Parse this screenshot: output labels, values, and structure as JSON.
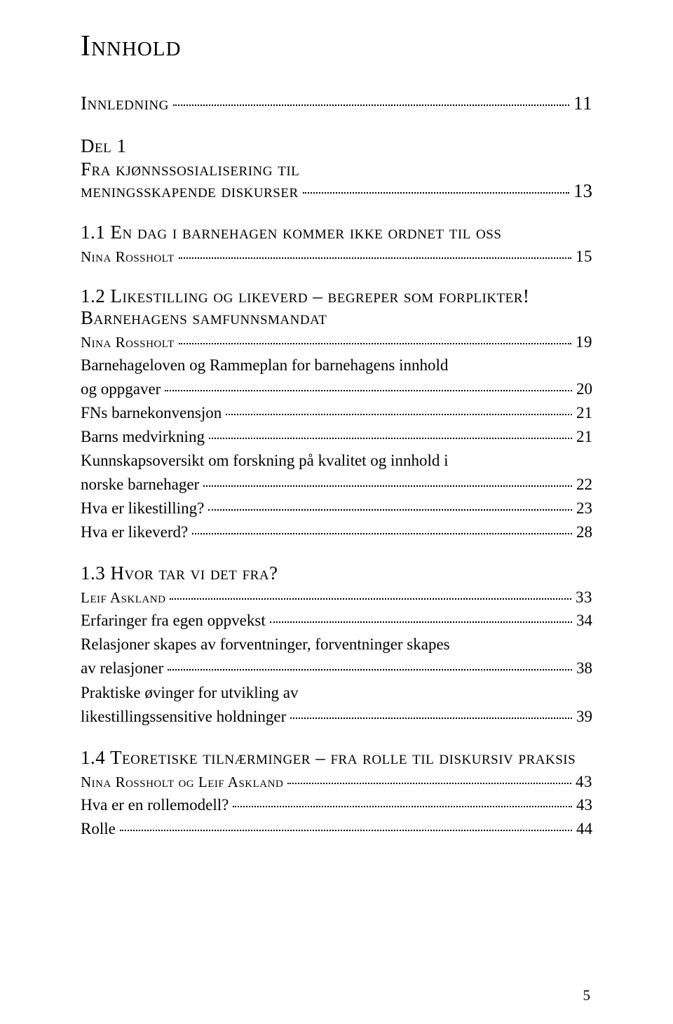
{
  "title": "Innhold",
  "innledning": {
    "label": "Innledning",
    "page": "11"
  },
  "part": {
    "label": "Del 1",
    "title": "Fra kjønnssosialisering til",
    "title2": "meningsskapende diskurser",
    "page": "13"
  },
  "chapters": [
    {
      "num": "1.1",
      "title": "En dag i barnehagen kommer ikke ordnet til oss",
      "author": "Nina Rossholt",
      "page": "15",
      "entries": []
    },
    {
      "num": "1.2",
      "title": "Likestilling og likeverd – begreper som forplikter!",
      "subtitle": "Barnehagens samfunnsmandat",
      "author": "Nina Rossholt",
      "page": "19",
      "entries": [
        {
          "text_l1": "Barnehageloven og Rammeplan for barnehagens innhold",
          "text_l2": "og oppgaver",
          "page": "20"
        },
        {
          "text": "FNs barnekonvensjon",
          "page": "21"
        },
        {
          "text": "Barns medvirkning",
          "page": "21"
        },
        {
          "text_l1": "Kunnskapsoversikt om forskning på kvalitet og innhold i",
          "text_l2": "norske barnehager",
          "page": "22"
        },
        {
          "text": "Hva er likestilling?",
          "page": "23"
        },
        {
          "text": "Hva er likeverd?",
          "page": "28"
        }
      ]
    },
    {
      "num": "1.3",
      "title": "Hvor tar vi det fra?",
      "author": "Leif Askland",
      "page": "33",
      "entries": [
        {
          "text": "Erfaringer fra egen oppvekst",
          "page": "34"
        },
        {
          "text_l1": "Relasjoner skapes av forventninger, forventninger skapes",
          "text_l2": "av relasjoner",
          "page": "38"
        },
        {
          "text_l1": "Praktiske øvinger for utvikling av",
          "text_l2": "likestillingssensitive holdninger",
          "page": "39"
        }
      ]
    },
    {
      "num": "1.4",
      "title": "Teoretiske tilnærminger – fra rolle til diskursiv praksis",
      "author": "Nina Rossholt og Leif Askland",
      "page": "43",
      "entries": [
        {
          "text": "Hva er en rollemodell?",
          "page": "43"
        },
        {
          "text": "Rolle",
          "page": "44"
        }
      ]
    }
  ],
  "page_number": "5"
}
